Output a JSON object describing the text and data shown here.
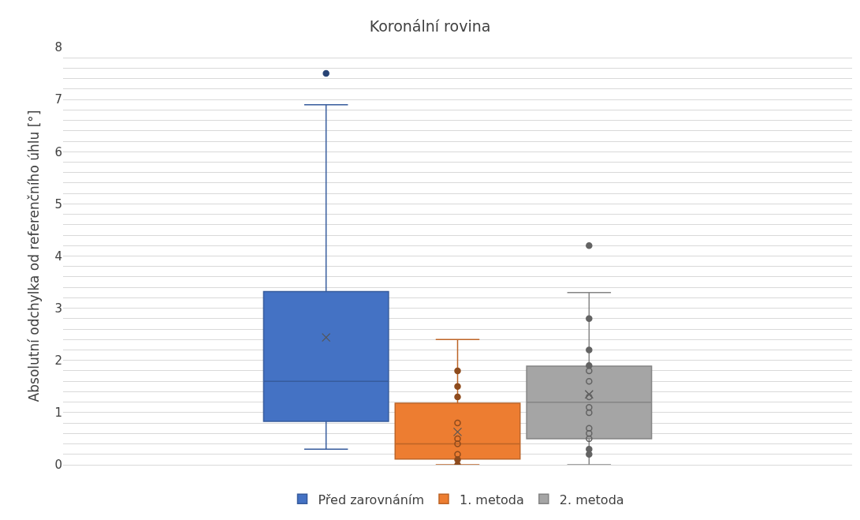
{
  "chart_data": {
    "type": "box",
    "title": "Koronální rovina",
    "ylabel": "Absolutní odchylka od referenčního úhlu [°]",
    "categories": [
      null
    ],
    "series": [
      {
        "name": "Před zarovnáním",
        "color": "#4472c4",
        "boxes": [
          {
            "low": 0.3,
            "q1": 0.83,
            "median": 1.6,
            "q3": 3.32,
            "high": 6.9,
            "mean": 2.44,
            "outliers": [
              7.5
            ]
          }
        ]
      },
      {
        "name": "1. metoda",
        "color": "#ed7d31",
        "boxes": [
          {
            "low": 0.0,
            "q1": 0.11,
            "median": 0.4,
            "q3": 1.18,
            "high": 2.4,
            "mean": 0.63,
            "outliers": [
              1.8,
              1.5,
              1.3,
              0.8,
              0.5,
              0.4,
              0.2,
              0.1,
              0.0
            ]
          }
        ]
      },
      {
        "name": "2. metoda",
        "color": "#a5a5a5",
        "boxes": [
          {
            "low": 0.0,
            "q1": 0.5,
            "median": 1.2,
            "q3": 1.89,
            "high": 3.3,
            "mean": 1.35,
            "outliers": [
              4.2,
              2.8,
              2.2,
              1.9,
              1.8,
              1.6,
              1.3,
              1.1,
              1.0,
              0.7,
              0.6,
              0.5,
              0.3,
              0.2
            ]
          }
        ]
      }
    ],
    "ylim": [
      0,
      8
    ],
    "yticks": [
      0,
      {
        "value": 0.2,
        "label": null
      },
      {
        "value": 0.4,
        "label": null
      },
      {
        "value": 0.6,
        "label": null
      },
      {
        "value": 0.8,
        "label": null
      },
      1,
      {
        "value": 1.2,
        "label": null
      },
      {
        "value": 1.4,
        "label": null
      },
      {
        "value": 1.6,
        "label": null
      },
      {
        "value": 1.8,
        "label": null
      },
      2,
      {
        "value": 2.2,
        "label": null
      },
      {
        "value": 2.4,
        "label": null
      },
      {
        "value": 2.6,
        "label": null
      },
      {
        "value": 2.8,
        "label": null
      },
      3,
      {
        "value": 3.2,
        "label": null
      },
      {
        "value": 3.4,
        "label": null
      },
      {
        "value": 3.6,
        "label": null
      },
      {
        "value": 3.8,
        "label": null
      },
      4,
      {
        "value": 4.2,
        "label": null
      },
      {
        "value": 4.4,
        "label": null
      },
      {
        "value": 4.6,
        "label": null
      },
      {
        "value": 4.8,
        "label": null
      },
      5,
      {
        "value": 5.2,
        "label": null
      },
      {
        "value": 5.4,
        "label": null
      },
      {
        "value": 5.6,
        "label": null
      },
      {
        "value": 5.8,
        "label": null
      },
      6,
      {
        "value": 6.2,
        "label": null
      },
      {
        "value": 6.4,
        "label": null
      },
      {
        "value": 6.6,
        "label": null
      },
      {
        "value": 6.8,
        "label": null
      },
      7,
      {
        "value": 7.2,
        "label": null
      },
      {
        "value": 7.4,
        "label": null
      },
      {
        "value": 7.6,
        "label": null
      },
      {
        "value": 7.8,
        "label": null
      },
      8
    ],
    "grid": "y",
    "legend": "bottom",
    "marker": "circle"
  }
}
